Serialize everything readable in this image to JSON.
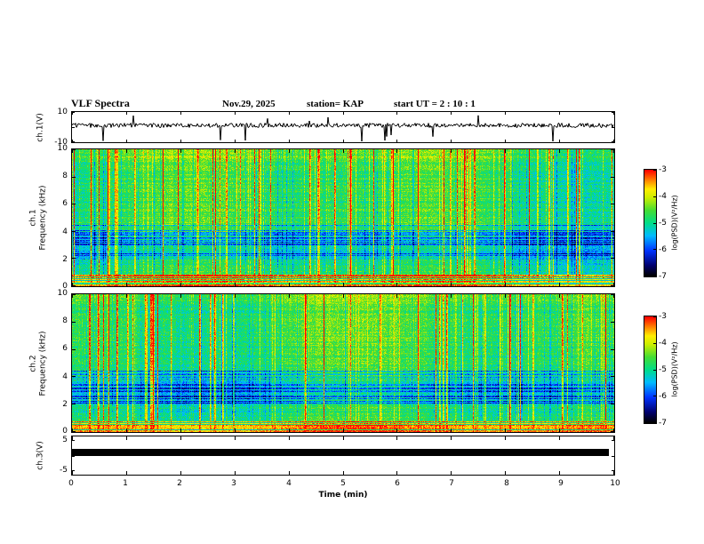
{
  "title": "VLF Spectra",
  "header": {
    "date": "Nov.29, 2025",
    "station_text": "station= KAP",
    "start_ut_text": "start UT =  2 : 10 : 1"
  },
  "labels": {
    "ch1v": "ch.1(V)",
    "ch1": "ch.1",
    "ch2": "ch.2",
    "freq": "Frequency (kHz)",
    "ch3v": "ch.3(V)",
    "time": "Time (min)"
  },
  "axes": {
    "x": {
      "label": "Time (min)",
      "ticks": [
        "0",
        "1",
        "2",
        "3",
        "4",
        "5",
        "6",
        "7",
        "8",
        "9",
        "10"
      ]
    },
    "spec_yticks": [
      "10",
      "8",
      "6",
      "4",
      "2",
      "0"
    ],
    "wave1_yticks": [
      "10",
      "-10"
    ],
    "wave3_yticks": [
      "5",
      "-5"
    ]
  },
  "colorbar": {
    "label": "log(PSD)(V²/Hz)",
    "ticks": [
      "-3",
      "-4",
      "-5",
      "-6",
      "-7"
    ]
  },
  "colors": {
    "frame": "#000000",
    "trace": "#000000",
    "colormap_stops": [
      [
        0.0,
        "#000000"
      ],
      [
        0.1,
        "#00006e"
      ],
      [
        0.24,
        "#0033ff"
      ],
      [
        0.38,
        "#00bbff"
      ],
      [
        0.5,
        "#00dd88"
      ],
      [
        0.62,
        "#44dd33"
      ],
      [
        0.74,
        "#ccee00"
      ],
      [
        0.82,
        "#ffee00"
      ],
      [
        0.9,
        "#ff8800"
      ],
      [
        1.0,
        "#ff0000"
      ]
    ]
  },
  "chart_data": {
    "type": "heatmap",
    "title": "VLF Spectra",
    "annotations": [
      "Nov.29, 2025",
      "station= KAP",
      "start UT =  2 : 10 : 1"
    ],
    "x": {
      "label": "Time (min)",
      "range": [
        0,
        10
      ],
      "ticks": [
        0,
        1,
        2,
        3,
        4,
        5,
        6,
        7,
        8,
        9,
        10
      ]
    },
    "panels": [
      {
        "name": "ch.1(V)",
        "type": "line",
        "ylim": [
          -10,
          10
        ],
        "yticks": [
          10,
          -10
        ],
        "description": "Black broadband noise waveform fluctuating around 0 V for the full 10 minutes with frequent impulsive spikes reaching roughly -10 V and +6 V."
      },
      {
        "name": "ch.1 Frequency (kHz)",
        "type": "heatmap",
        "ylim": [
          0,
          10
        ],
        "yticks": [
          10,
          8,
          6,
          4,
          2,
          0
        ],
        "value_range_log_psd": [
          -7,
          -3
        ],
        "description": "VLF spectrogram 0-10 kHz vs 0-10 min: mostly green/yellow mid-level power (~-5), dense thin red vertical broadband impulses at many times, a darker blue low-power band near 2-4.5 kHz, and intense continuous red/yellow horizontal lines below ~1 kHz."
      },
      {
        "name": "ch.2 Frequency (kHz)",
        "type": "heatmap",
        "ylim": [
          0,
          10
        ],
        "yticks": [
          10,
          8,
          6,
          4,
          2,
          0
        ],
        "value_range_log_psd": [
          -7,
          -3
        ],
        "description": "Second-channel VLF spectrogram with the same structure: green/yellow background, red vertical impulse streaks, blue band near 2-4 kHz, bright horizontal lines below ~1 kHz."
      },
      {
        "name": "ch.3(V)",
        "type": "line",
        "ylim": [
          -5,
          5
        ],
        "yticks": [
          5,
          -5
        ],
        "description": "Saturated/clipped flat trace rendered as a thick solid black horizontal bar slightly above 0 V spanning nearly the full 10 minutes."
      }
    ],
    "colorbars": [
      {
        "label": "log(PSD)(V²/Hz)",
        "ticks": [
          -3,
          -4,
          -5,
          -6,
          -7
        ],
        "orientation": "vertical",
        "top_color": "red",
        "bottom_color": "black"
      },
      {
        "label": "log(PSD)(V²/Hz)",
        "ticks": [
          -3,
          -4,
          -5,
          -6,
          -7
        ],
        "orientation": "vertical",
        "top_color": "red",
        "bottom_color": "black"
      }
    ],
    "legend": null,
    "grid": false
  }
}
